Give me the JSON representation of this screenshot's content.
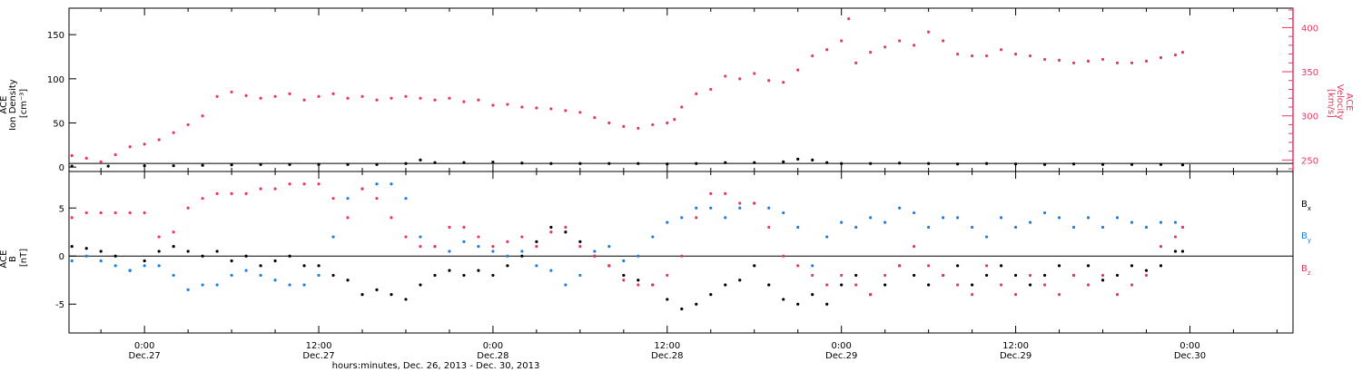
{
  "colors": {
    "density": "#000000",
    "velocity": "#e8375f",
    "bx": "#000000",
    "by": "#1a7fe0",
    "bz": "#e8375f",
    "axis": "#000000"
  },
  "xaxis": {
    "range_hours": [
      -5.2,
      79.1
    ],
    "caption": "hours:minutes, Dec. 26, 2013 - Dec. 30, 2013",
    "ticks": [
      {
        "h": 0,
        "time": "0:00",
        "date": "Dec.27"
      },
      {
        "h": 12,
        "time": "12:00",
        "date": "Dec.27"
      },
      {
        "h": 24,
        "time": "0:00",
        "date": "Dec.28"
      },
      {
        "h": 36,
        "time": "12:00",
        "date": "Dec.28"
      },
      {
        "h": 48,
        "time": "0:00",
        "date": "Dec.29"
      },
      {
        "h": 60,
        "time": "12:00",
        "date": "Dec.29"
      },
      {
        "h": 72,
        "time": "0:00",
        "date": "Dec.30"
      }
    ]
  },
  "chart_data": [
    {
      "type": "scatter",
      "panel": "top",
      "ylabel_left": [
        "ACE",
        "Ion Density",
        "[cm⁻³]"
      ],
      "ylim_left": [
        -5,
        180
      ],
      "yticks_left": [
        0,
        50,
        100,
        150
      ],
      "ylabel_right": [
        "ACE",
        "Velocity",
        "[km/s]"
      ],
      "ylim_right": [
        237,
        422
      ],
      "yticks_right": [
        250,
        300,
        350,
        400
      ],
      "series": [
        {
          "axis": "left",
          "color_key": "density",
          "x": [
            -5.0,
            -2.5,
            0,
            2,
            4,
            6,
            8,
            10,
            12,
            14,
            16,
            18,
            19,
            20,
            22,
            24,
            26,
            28,
            30,
            32,
            34,
            36,
            38,
            40,
            42,
            44,
            45,
            46,
            47,
            48,
            50,
            52,
            54,
            56,
            58,
            60,
            62,
            64,
            66,
            68,
            70,
            71.5
          ],
          "y": [
            1,
            1,
            1.5,
            1.5,
            2,
            2.5,
            3,
            3,
            3,
            3,
            3,
            4,
            8,
            5,
            5,
            5.5,
            4.5,
            4,
            4,
            4,
            4,
            3.5,
            4,
            5,
            5,
            6,
            9,
            8,
            5,
            4,
            4,
            4.5,
            4,
            3.5,
            4,
            3.5,
            3,
            3.5,
            3,
            3,
            3,
            2.5
          ]
        },
        {
          "axis": "right",
          "color_key": "velocity",
          "x": [
            -5.0,
            -4.0,
            -3.0,
            -2.0,
            -1.0,
            0,
            1,
            2,
            3,
            4,
            5,
            6,
            7,
            8,
            9,
            10,
            11,
            12,
            13,
            14,
            15,
            16,
            17,
            18,
            19,
            20,
            21,
            22,
            23,
            24,
            25,
            26,
            27,
            28,
            29,
            30,
            31,
            32,
            33,
            34,
            35,
            36,
            36.5,
            37,
            38,
            39,
            40,
            41,
            42,
            43,
            44,
            45,
            46,
            47,
            48,
            48.5,
            49,
            50,
            51,
            52,
            53,
            54,
            55,
            56,
            57,
            58,
            59,
            60,
            61,
            62,
            63,
            64,
            65,
            66,
            67,
            68,
            69,
            70,
            71,
            71.5
          ],
          "y": [
            255,
            252,
            248,
            256,
            265,
            268,
            273,
            281,
            290,
            300,
            322,
            327,
            323,
            320,
            322,
            325,
            318,
            322,
            325,
            320,
            322,
            318,
            320,
            322,
            320,
            318,
            320,
            316,
            318,
            312,
            313,
            310,
            309,
            308,
            306,
            304,
            298,
            292,
            288,
            286,
            290,
            292,
            296,
            310,
            325,
            330,
            345,
            342,
            348,
            340,
            338,
            352,
            368,
            375,
            385,
            410,
            360,
            372,
            378,
            385,
            380,
            395,
            385,
            370,
            368,
            368,
            375,
            370,
            368,
            364,
            363,
            360,
            362,
            364,
            360,
            360,
            362,
            366,
            369,
            372
          ]
        }
      ]
    },
    {
      "type": "scatter",
      "panel": "bottom",
      "ylabel": [
        "ACE",
        "B",
        "[nT]"
      ],
      "ylim": [
        -8,
        8.8
      ],
      "yticks": [
        -5,
        0,
        5
      ],
      "legend": [
        "B",
        "B",
        "B"
      ],
      "legend_subscripts": [
        "x",
        "y",
        "z"
      ],
      "legend_position": "right",
      "series": [
        {
          "color_key": "bx",
          "x": [
            -5.0,
            -4,
            -3,
            -2,
            -1,
            0,
            1,
            2,
            3,
            4,
            5,
            6,
            7,
            8,
            9,
            10,
            11,
            12,
            13,
            14,
            15,
            16,
            17,
            18,
            19,
            20,
            21,
            22,
            23,
            24,
            25,
            26,
            27,
            28,
            29,
            30,
            31,
            32,
            33,
            34,
            35,
            36,
            37,
            38,
            39,
            40,
            41,
            42,
            43,
            44,
            45,
            46,
            47,
            48,
            49,
            50,
            51,
            52,
            53,
            54,
            55,
            56,
            57,
            58,
            59,
            60,
            61,
            62,
            63,
            64,
            65,
            66,
            67,
            68,
            69,
            70,
            71,
            71.5
          ],
          "y": [
            1,
            0.8,
            0.5,
            0,
            -1.5,
            -0.5,
            0.5,
            1,
            0.5,
            0,
            0.5,
            -0.5,
            0,
            -1,
            -0.5,
            0,
            -1,
            -1,
            -2,
            -2.5,
            -4,
            -3.5,
            -4,
            -4.5,
            -3,
            -2,
            -1.5,
            -2,
            -1.5,
            -2,
            -1,
            0,
            1.5,
            3,
            2.5,
            1.5,
            0,
            -1,
            -2,
            -2.5,
            -3,
            -4.5,
            -5.5,
            -5,
            -4,
            -3,
            -2.5,
            -1,
            -3,
            -4.5,
            -5,
            -4,
            -5,
            -3,
            -2,
            -4,
            -3,
            -1,
            -2,
            -3,
            -2,
            -1,
            -3,
            -2,
            -1,
            -2,
            -3,
            -2,
            -1,
            -2,
            -1,
            -2.5,
            -2,
            -1,
            -1.5,
            -1,
            0.5,
            0.5
          ]
        },
        {
          "color_key": "by",
          "x": [
            -5.0,
            -4,
            -3,
            -2,
            -1,
            0,
            1,
            2,
            3,
            4,
            5,
            6,
            7,
            8,
            9,
            10,
            11,
            12,
            13,
            14,
            15,
            16,
            17,
            18,
            19,
            20,
            21,
            22,
            23,
            24,
            25,
            26,
            27,
            28,
            29,
            30,
            31,
            32,
            33,
            34,
            35,
            36,
            37,
            38,
            39,
            40,
            41,
            42,
            43,
            44,
            45,
            46,
            47,
            48,
            49,
            50,
            51,
            52,
            53,
            54,
            55,
            56,
            57,
            58,
            59,
            60,
            61,
            62,
            63,
            64,
            65,
            66,
            67,
            68,
            69,
            70,
            71,
            71.5
          ],
          "y": [
            -0.5,
            0,
            -0.5,
            -1,
            -1.5,
            -1,
            -1,
            -2,
            -3.5,
            -3,
            -3,
            -2,
            -1.5,
            -2,
            -2.5,
            -3,
            -3,
            -2,
            2,
            6,
            7,
            7.5,
            7.5,
            6,
            2,
            1,
            0.5,
            1.5,
            1,
            0.5,
            0,
            0.5,
            -1,
            -1.5,
            -3,
            -2,
            0.5,
            1,
            -0.5,
            0,
            2,
            3.5,
            4,
            5,
            5,
            4,
            5,
            5.5,
            5,
            4.5,
            3,
            -1,
            2,
            3.5,
            3,
            4,
            3.5,
            5,
            4.5,
            3,
            4,
            4,
            3,
            2,
            4,
            3,
            3.5,
            4.5,
            4,
            3,
            4,
            3,
            4,
            3.5,
            3,
            3.5,
            3.5,
            3
          ]
        },
        {
          "color_key": "bz",
          "x": [
            -5.0,
            -4,
            -3,
            -2,
            -1,
            0,
            1,
            2,
            3,
            4,
            5,
            6,
            7,
            8,
            9,
            10,
            11,
            12,
            13,
            14,
            15,
            16,
            17,
            18,
            19,
            20,
            21,
            22,
            23,
            24,
            25,
            26,
            27,
            28,
            29,
            30,
            31,
            32,
            33,
            34,
            35,
            36,
            37,
            38,
            39,
            40,
            41,
            42,
            43,
            44,
            45,
            46,
            47,
            48,
            49,
            50,
            51,
            52,
            53,
            54,
            55,
            56,
            57,
            58,
            59,
            60,
            61,
            62,
            63,
            64,
            65,
            66,
            67,
            68,
            69,
            70,
            71,
            71.5
          ],
          "y": [
            4,
            4.5,
            4.5,
            4.5,
            4.5,
            4.5,
            2,
            2.5,
            5,
            6,
            6.5,
            6.5,
            6.5,
            7,
            7,
            7.5,
            7.5,
            7.5,
            6,
            4,
            7,
            6,
            4,
            2,
            1,
            1,
            3,
            3,
            2,
            1,
            1.5,
            2,
            1,
            2.5,
            3,
            1,
            0,
            -1,
            -2.5,
            -3,
            -3,
            -2,
            0,
            4,
            6.5,
            6.5,
            5.5,
            5.5,
            3,
            0,
            -1,
            -2,
            -3,
            -2,
            -3,
            -4,
            -2,
            -1,
            1,
            -1,
            -2,
            -3,
            -4,
            -1,
            -3,
            -4,
            -2,
            -3,
            -4,
            -2,
            -3,
            -2,
            -4,
            -3,
            -2,
            1,
            2,
            3
          ]
        }
      ]
    }
  ]
}
